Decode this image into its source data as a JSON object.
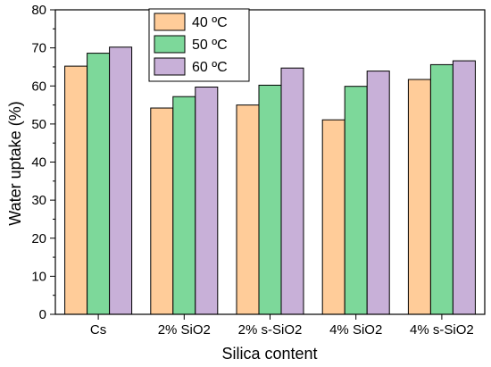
{
  "chart_data": {
    "type": "bar",
    "title": "",
    "xlabel": "Silica content",
    "ylabel": "Water uptake (%)",
    "categories": [
      "Cs",
      "2% SiO2",
      "2% s-SiO2",
      "4% SiO2",
      "4% s-SiO2"
    ],
    "series": [
      {
        "name": "40 ºC",
        "color": "#ffcc99",
        "values": [
          65.2,
          54.2,
          55.0,
          51.1,
          61.7
        ]
      },
      {
        "name": "50 ºC",
        "color": "#7dd89a",
        "values": [
          68.6,
          57.2,
          60.2,
          59.9,
          65.6
        ]
      },
      {
        "name": "60 ºC",
        "color": "#c8b0d8",
        "values": [
          70.2,
          59.7,
          64.7,
          63.9,
          66.6
        ]
      }
    ],
    "ylim": [
      0,
      80
    ],
    "yticks": [
      0,
      10,
      20,
      30,
      40,
      50,
      60,
      70,
      80
    ],
    "grid": false,
    "legend_position": "top-center"
  }
}
